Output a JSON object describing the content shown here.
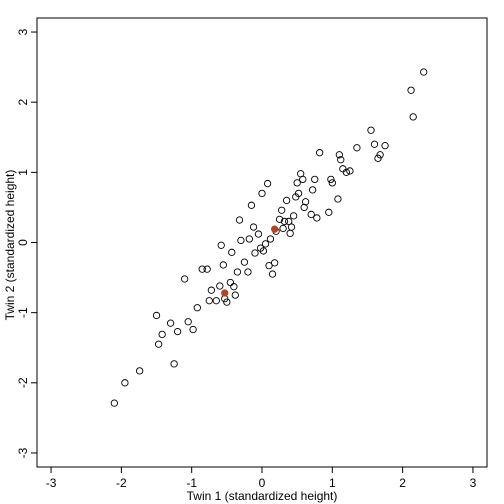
{
  "chart_data": {
    "type": "scatter",
    "title": "",
    "xlabel": "Twin 1 (standardized height)",
    "ylabel": "Twin 2 (standardized height)",
    "xlim": [
      -3.2,
      3.2
    ],
    "ylim": [
      -3.2,
      3.2
    ],
    "xticks": [
      "-3",
      "-2",
      "-1",
      "0",
      "1",
      "2",
      "3"
    ],
    "yticks": [
      "-3",
      "-2",
      "-1",
      "0",
      "1",
      "2",
      "3"
    ],
    "grid": false,
    "legend": "none",
    "series": [
      {
        "marker": "open-circle",
        "color": "#000000",
        "points": [
          [
            -2.1,
            -2.29
          ],
          [
            -1.95,
            -2.0
          ],
          [
            -1.74,
            -1.83
          ],
          [
            -1.5,
            -1.04
          ],
          [
            -1.47,
            -1.45
          ],
          [
            -1.42,
            -1.31
          ],
          [
            -1.3,
            -1.15
          ],
          [
            -1.25,
            -1.73
          ],
          [
            -1.2,
            -1.27
          ],
          [
            -1.1,
            -0.52
          ],
          [
            -1.05,
            -1.13
          ],
          [
            -0.98,
            -1.24
          ],
          [
            -0.92,
            -0.93
          ],
          [
            -0.85,
            -0.38
          ],
          [
            -0.78,
            -0.38
          ],
          [
            -0.75,
            -0.83
          ],
          [
            -0.72,
            -0.68
          ],
          [
            -0.65,
            -0.83
          ],
          [
            -0.6,
            -0.62
          ],
          [
            -0.58,
            -0.04
          ],
          [
            -0.55,
            -0.32
          ],
          [
            -0.53,
            -0.8
          ],
          [
            -0.5,
            -0.85
          ],
          [
            -0.45,
            -0.57
          ],
          [
            -0.43,
            -0.14
          ],
          [
            -0.4,
            -0.63
          ],
          [
            -0.38,
            -0.75
          ],
          [
            -0.35,
            -0.42
          ],
          [
            -0.32,
            0.32
          ],
          [
            -0.3,
            0.03
          ],
          [
            -0.25,
            -0.28
          ],
          [
            -0.2,
            -0.42
          ],
          [
            -0.18,
            0.05
          ],
          [
            -0.15,
            0.53
          ],
          [
            -0.12,
            0.22
          ],
          [
            -0.1,
            -0.15
          ],
          [
            -0.05,
            0.12
          ],
          [
            -0.02,
            -0.08
          ],
          [
            0.0,
            0.7
          ],
          [
            0.02,
            -0.12
          ],
          [
            0.05,
            -0.02
          ],
          [
            0.08,
            0.84
          ],
          [
            0.1,
            -0.33
          ],
          [
            0.12,
            0.05
          ],
          [
            0.15,
            -0.45
          ],
          [
            0.18,
            -0.29
          ],
          [
            0.2,
            0.16
          ],
          [
            0.25,
            0.33
          ],
          [
            0.28,
            0.46
          ],
          [
            0.3,
            0.2
          ],
          [
            0.32,
            0.3
          ],
          [
            0.35,
            0.6
          ],
          [
            0.38,
            0.3
          ],
          [
            0.4,
            0.13
          ],
          [
            0.42,
            0.22
          ],
          [
            0.45,
            0.38
          ],
          [
            0.48,
            0.65
          ],
          [
            0.5,
            0.85
          ],
          [
            0.52,
            0.7
          ],
          [
            0.55,
            0.98
          ],
          [
            0.58,
            0.9
          ],
          [
            0.6,
            0.5
          ],
          [
            0.62,
            0.58
          ],
          [
            0.7,
            0.4
          ],
          [
            0.72,
            0.75
          ],
          [
            0.75,
            0.9
          ],
          [
            0.78,
            0.35
          ],
          [
            0.82,
            1.28
          ],
          [
            0.95,
            0.43
          ],
          [
            0.98,
            0.9
          ],
          [
            1.0,
            0.85
          ],
          [
            1.08,
            0.62
          ],
          [
            1.1,
            1.25
          ],
          [
            1.12,
            1.18
          ],
          [
            1.15,
            1.05
          ],
          [
            1.2,
            1.0
          ],
          [
            1.25,
            1.02
          ],
          [
            1.35,
            1.35
          ],
          [
            1.55,
            1.6
          ],
          [
            1.6,
            1.4
          ],
          [
            1.65,
            1.2
          ],
          [
            1.68,
            1.25
          ],
          [
            1.75,
            1.38
          ],
          [
            2.12,
            2.17
          ],
          [
            2.15,
            1.79
          ],
          [
            2.3,
            2.43
          ]
        ]
      },
      {
        "marker": "filled-circle",
        "color": "#b5431f",
        "points": [
          [
            -0.53,
            -0.72
          ],
          [
            0.18,
            0.19
          ]
        ]
      }
    ]
  }
}
